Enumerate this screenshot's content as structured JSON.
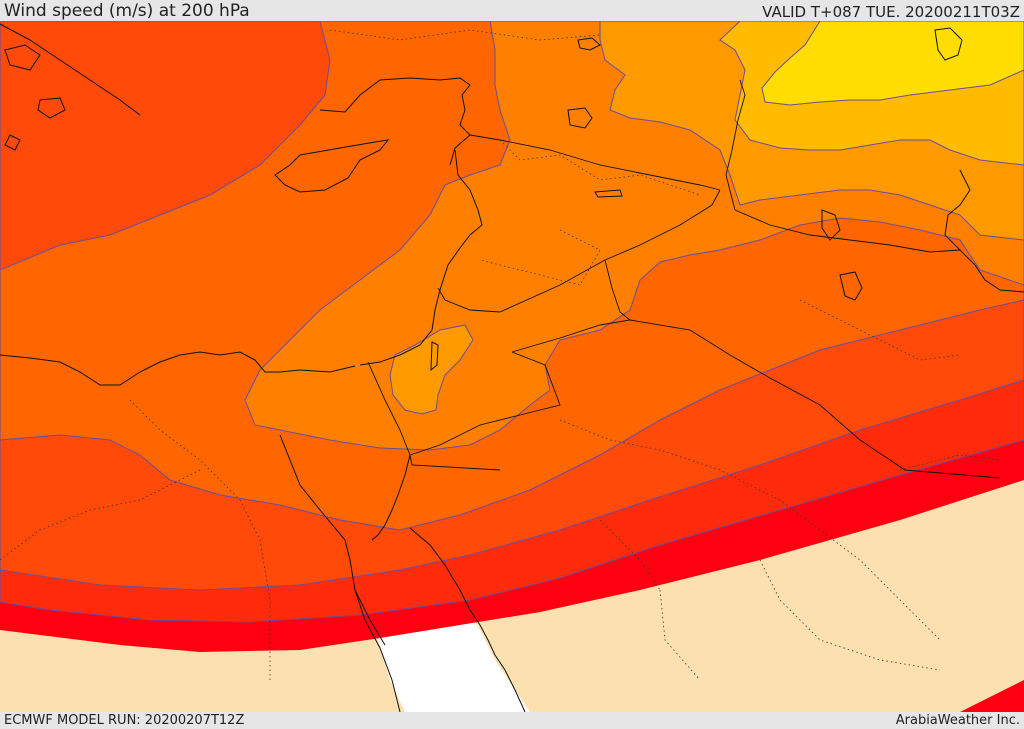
{
  "header": {
    "title": "Wind speed (m/s) at 200 hPa",
    "valid": "VALID T+087 TUE. 20200211T03Z"
  },
  "footer": {
    "model_run": "ECMWF MODEL RUN: 20200207T12Z",
    "credit": "ArabiaWeather Inc."
  },
  "colors": {
    "below_threshold": "#fde0b0",
    "sea_no_data": "#ffffff",
    "band_yellow": "#ffdd00",
    "band_gold": "#ffbb00",
    "band_amber": "#ff9900",
    "band_orange": "#ff8000",
    "band_dark_orange": "#ff6600",
    "band_red_orange": "#ff4a0a",
    "band_red": "#ff2b0a",
    "band_bright_red": "#ff0010",
    "contour_line": "#6a4c9c",
    "coastline": "#111111"
  }
}
